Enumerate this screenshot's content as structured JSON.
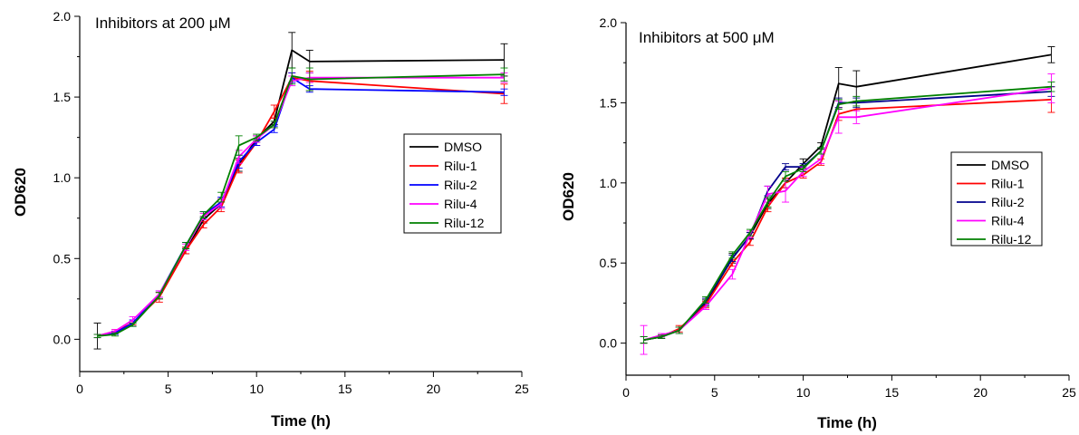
{
  "chart_data": [
    {
      "type": "line",
      "title": "Inhibitors at 200 μM",
      "xlabel": "Time (h)",
      "ylabel": "OD620",
      "xlim": [
        0,
        25
      ],
      "ylim": [
        -0.2,
        2.0
      ],
      "xticks": [
        "0",
        "5",
        "10",
        "15",
        "20",
        "25"
      ],
      "yticks": [
        "0.0",
        "0.5",
        "1.0",
        "1.5",
        "2.0"
      ],
      "legend_position": "right",
      "x": [
        1,
        2,
        3,
        4.5,
        6,
        7,
        8,
        9,
        10,
        11,
        12,
        13,
        24
      ],
      "series": [
        {
          "name": "DMSO",
          "color": "#000000",
          "values": [
            0.02,
            0.04,
            0.09,
            0.27,
            0.55,
            0.74,
            0.84,
            1.08,
            1.24,
            1.35,
            1.79,
            1.72,
            1.73
          ],
          "errors": [
            0.08,
            0.01,
            0.01,
            0.02,
            0.02,
            0.02,
            0.03,
            0.04,
            0.02,
            0.02,
            0.11,
            0.07,
            0.1
          ]
        },
        {
          "name": "Rilu-1",
          "color": "#ff0000",
          "values": [
            0.02,
            0.05,
            0.1,
            0.26,
            0.55,
            0.71,
            0.82,
            1.07,
            1.22,
            1.41,
            1.62,
            1.6,
            1.52
          ],
          "errors": [
            0.01,
            0.01,
            0.01,
            0.03,
            0.02,
            0.02,
            0.03,
            0.04,
            0.02,
            0.04,
            0.03,
            0.06,
            0.06
          ]
        },
        {
          "name": "Rilu-2",
          "color": "#0000ff",
          "values": [
            0.02,
            0.04,
            0.1,
            0.28,
            0.58,
            0.77,
            0.85,
            1.1,
            1.22,
            1.3,
            1.62,
            1.55,
            1.53
          ],
          "errors": [
            0.01,
            0.01,
            0.02,
            0.02,
            0.02,
            0.02,
            0.03,
            0.04,
            0.02,
            0.02,
            0.03,
            0.02,
            0.02
          ]
        },
        {
          "name": "Rilu-4",
          "color": "#ff00ff",
          "values": [
            0.02,
            0.05,
            0.12,
            0.28,
            0.57,
            0.76,
            0.84,
            1.13,
            1.24,
            1.33,
            1.6,
            1.62,
            1.62
          ],
          "errors": [
            0.01,
            0.01,
            0.02,
            0.02,
            0.02,
            0.02,
            0.03,
            0.04,
            0.02,
            0.02,
            0.03,
            0.03,
            0.03
          ]
        },
        {
          "name": "Rilu-12",
          "color": "#008000",
          "values": [
            0.02,
            0.03,
            0.09,
            0.27,
            0.58,
            0.77,
            0.88,
            1.2,
            1.25,
            1.33,
            1.63,
            1.61,
            1.64
          ],
          "errors": [
            0.01,
            0.01,
            0.01,
            0.02,
            0.02,
            0.02,
            0.03,
            0.06,
            0.02,
            0.02,
            0.05,
            0.07,
            0.04
          ]
        }
      ]
    },
    {
      "type": "line",
      "title": "Inhibitors at 500 μM",
      "xlabel": "Time (h)",
      "ylabel": "OD620",
      "xlim": [
        0,
        25
      ],
      "ylim": [
        -0.2,
        2.0
      ],
      "xticks": [
        "0",
        "5",
        "10",
        "15",
        "20",
        "25"
      ],
      "yticks": [
        "0.0",
        "0.5",
        "1.0",
        "1.5",
        "2.0"
      ],
      "legend_position": "right",
      "x": [
        1,
        2,
        3,
        4.5,
        6,
        7,
        8,
        9,
        10,
        11,
        12,
        13,
        24
      ],
      "series": [
        {
          "name": "DMSO",
          "color": "#000000",
          "values": [
            0.02,
            0.04,
            0.08,
            0.25,
            0.53,
            0.67,
            0.87,
            1.0,
            1.12,
            1.23,
            1.62,
            1.6,
            1.8
          ],
          "errors": [
            0.02,
            0.01,
            0.02,
            0.02,
            0.03,
            0.02,
            0.03,
            0.03,
            0.03,
            0.02,
            0.1,
            0.1,
            0.05
          ]
        },
        {
          "name": "Rilu-1",
          "color": "#ff0000",
          "values": [
            0.02,
            0.04,
            0.09,
            0.24,
            0.5,
            0.63,
            0.85,
            1.0,
            1.05,
            1.13,
            1.43,
            1.46,
            1.52
          ],
          "errors": [
            0.02,
            0.01,
            0.02,
            0.02,
            0.02,
            0.02,
            0.03,
            0.03,
            0.02,
            0.02,
            0.04,
            0.05,
            0.08
          ]
        },
        {
          "name": "Rilu-2",
          "color": "#00008b",
          "values": [
            0.02,
            0.04,
            0.08,
            0.26,
            0.53,
            0.67,
            0.95,
            1.1,
            1.1,
            1.2,
            1.5,
            1.5,
            1.57
          ],
          "errors": [
            0.02,
            0.01,
            0.02,
            0.02,
            0.02,
            0.02,
            0.03,
            0.02,
            0.02,
            0.02,
            0.03,
            0.03,
            0.03
          ]
        },
        {
          "name": "Rilu-4",
          "color": "#ff00ff",
          "values": [
            0.02,
            0.05,
            0.08,
            0.23,
            0.43,
            0.68,
            0.93,
            0.95,
            1.07,
            1.15,
            1.41,
            1.41,
            1.59
          ],
          "errors": [
            0.09,
            0.01,
            0.02,
            0.02,
            0.03,
            0.02,
            0.05,
            0.07,
            0.03,
            0.03,
            0.1,
            0.04,
            0.09
          ]
        },
        {
          "name": "Rilu-12",
          "color": "#008000",
          "values": [
            0.02,
            0.04,
            0.08,
            0.27,
            0.55,
            0.69,
            0.88,
            1.04,
            1.09,
            1.2,
            1.49,
            1.51,
            1.6
          ],
          "errors": [
            0.02,
            0.01,
            0.02,
            0.02,
            0.02,
            0.02,
            0.03,
            0.03,
            0.02,
            0.02,
            0.03,
            0.03,
            0.03
          ]
        }
      ]
    }
  ]
}
